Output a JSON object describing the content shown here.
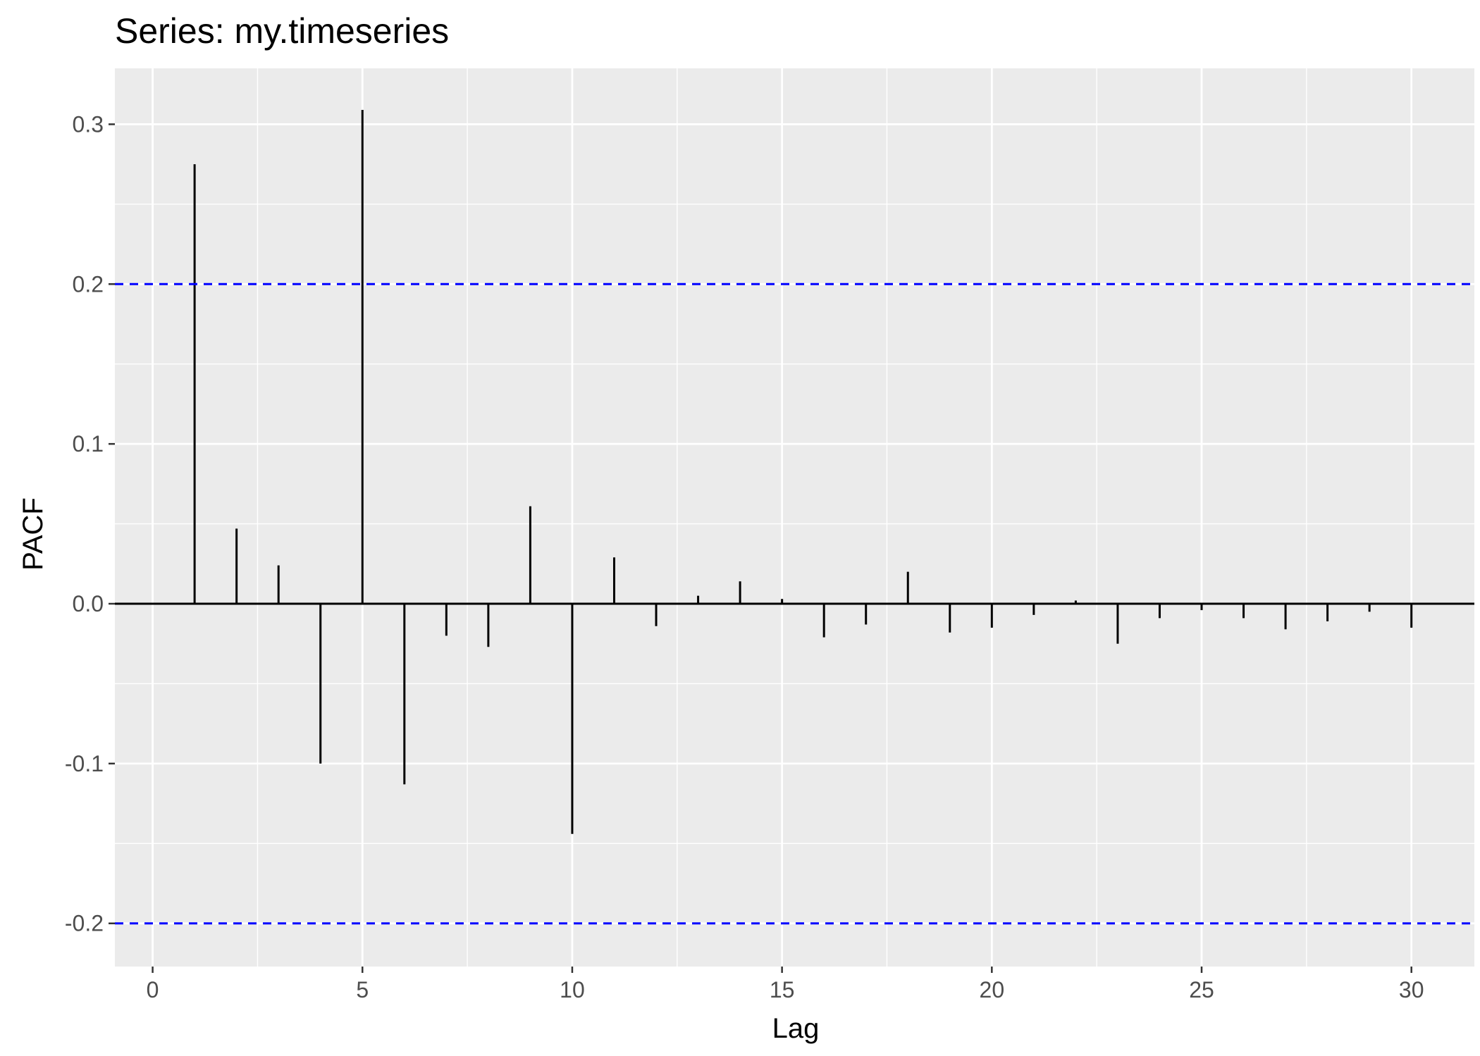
{
  "chart_data": {
    "type": "bar",
    "title": "Series: my.timeseries",
    "xlabel": "Lag",
    "ylabel": "PACF",
    "xlim": [
      -0.9,
      31.5
    ],
    "ylim": [
      -0.227,
      0.335
    ],
    "x_ticks": [
      0,
      5,
      10,
      15,
      20,
      25,
      30
    ],
    "x_tick_labels": [
      "0",
      "5",
      "10",
      "15",
      "20",
      "25",
      "30"
    ],
    "y_ticks": [
      -0.2,
      -0.1,
      0.0,
      0.1,
      0.2,
      0.3
    ],
    "y_tick_labels": [
      "-0.2",
      "-0.1",
      "0.0",
      "0.1",
      "0.2",
      "0.3"
    ],
    "grid": true,
    "lags": [
      1,
      2,
      3,
      4,
      5,
      6,
      7,
      8,
      9,
      10,
      11,
      12,
      13,
      14,
      15,
      16,
      17,
      18,
      19,
      20,
      21,
      22,
      23,
      24,
      25,
      26,
      27,
      28,
      29,
      30
    ],
    "values": [
      0.275,
      0.047,
      0.024,
      -0.1,
      0.309,
      -0.113,
      -0.02,
      -0.027,
      0.061,
      -0.144,
      0.029,
      -0.014,
      0.005,
      0.014,
      0.003,
      -0.021,
      -0.013,
      0.02,
      -0.018,
      -0.015,
      -0.007,
      0.002,
      -0.025,
      -0.009,
      -0.004,
      -0.009,
      -0.016,
      -0.011,
      -0.005,
      -0.015
    ],
    "confidence_bounds": [
      0.2,
      -0.2
    ],
    "colors": {
      "panel_background": "#ebebeb",
      "grid": "#ffffff",
      "bars": "#000000",
      "bounds": "#0000ff"
    }
  }
}
